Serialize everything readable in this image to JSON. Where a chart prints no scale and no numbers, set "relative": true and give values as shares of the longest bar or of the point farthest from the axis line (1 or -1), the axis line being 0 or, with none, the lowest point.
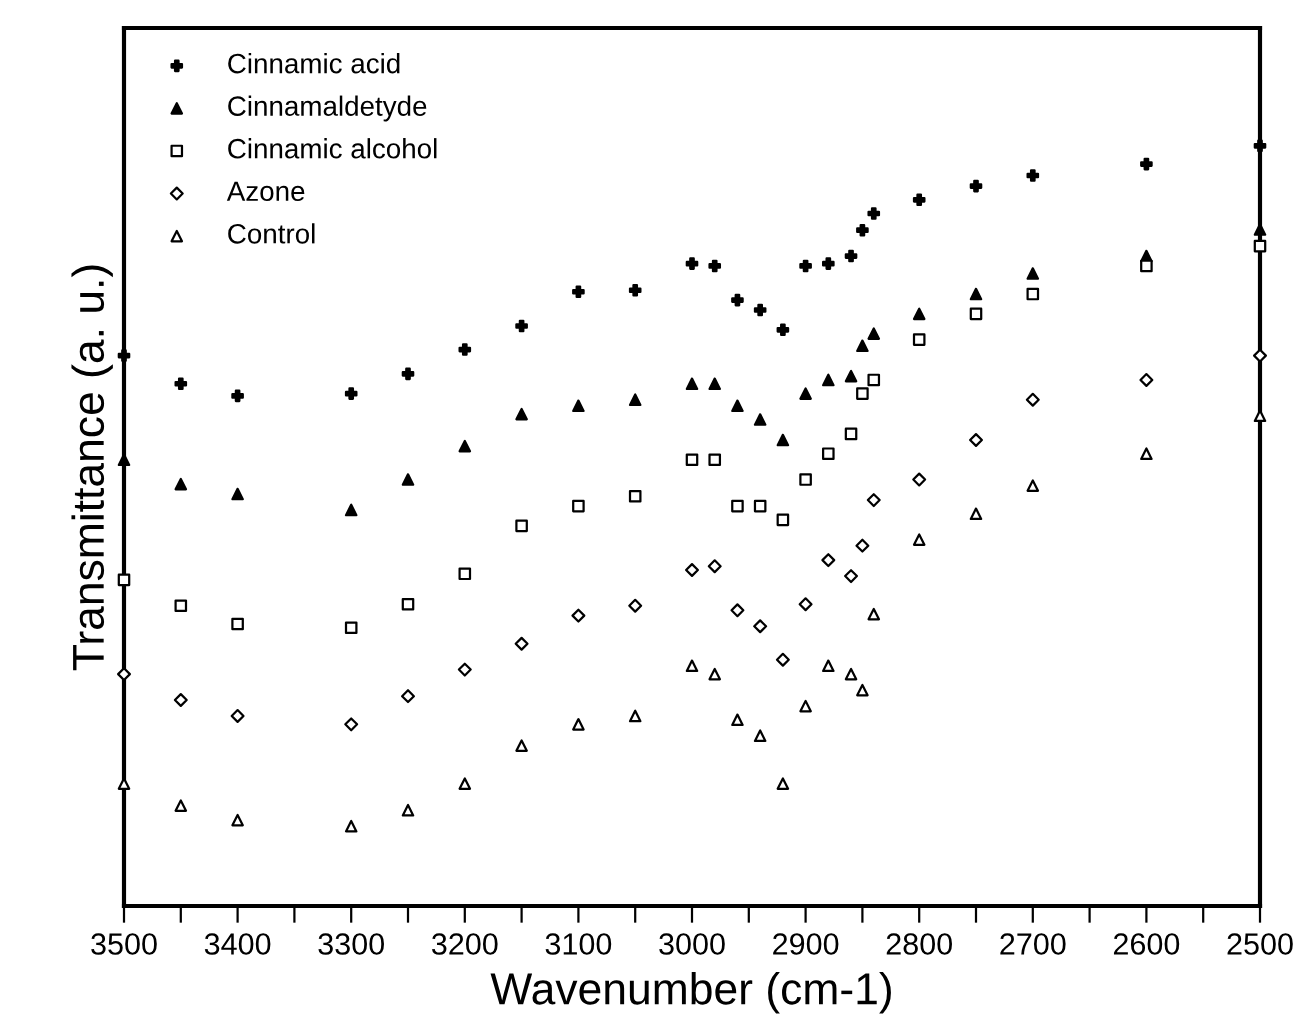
{
  "chart_data": {
    "type": "scatter",
    "relative": true,
    "xlabel": "Wavenumber (cm-1)",
    "ylabel": "Transmittance (a. u.)",
    "x": [
      3500,
      3450,
      3400,
      3300,
      3250,
      3200,
      3150,
      3100,
      3050,
      3000,
      2980,
      2960,
      2940,
      2920,
      2900,
      2880,
      2860,
      2850,
      2840,
      2800,
      2750,
      2700,
      2600,
      2500
    ],
    "xlim": [
      3500,
      2500
    ],
    "xticks": [
      3500,
      {
        "value": 3450,
        "label": null
      },
      3400,
      {
        "value": 3350,
        "label": null
      },
      3300,
      {
        "value": 3250,
        "label": null
      },
      3200,
      {
        "value": 3150,
        "label": null
      },
      3100,
      {
        "value": 3050,
        "label": null
      },
      3000,
      {
        "value": 2950,
        "label": null
      },
      2900,
      {
        "value": 2850,
        "label": null
      },
      2800,
      {
        "value": 2750,
        "label": null
      },
      2700,
      {
        "value": 2650,
        "label": null
      },
      2600,
      {
        "value": 2550,
        "label": null
      },
      2500
    ],
    "tick_labels": "x",
    "grid": false,
    "legend": "top left",
    "series": [
      {
        "name": "Cinnamic acid",
        "color": "#000000",
        "marker": "plus",
        "values": [
          0.724,
          0.687,
          0.671,
          0.674,
          0.7,
          0.732,
          0.763,
          0.808,
          0.81,
          0.845,
          0.842,
          0.797,
          0.784,
          0.758,
          0.842,
          0.845,
          0.855,
          0.889,
          0.911,
          0.929,
          0.947,
          0.961,
          0.976,
          1
        ]
      },
      {
        "name": "Cinnamaldetyde",
        "color": "#000000",
        "marker": "triangle_filled",
        "values": [
          0.587,
          0.555,
          0.542,
          0.521,
          0.561,
          0.605,
          0.647,
          0.658,
          0.666,
          0.687,
          0.687,
          0.658,
          0.64,
          0.613,
          0.674,
          0.692,
          0.697,
          0.737,
          0.753,
          0.779,
          0.805,
          0.832,
          0.855,
          0.89
        ]
      },
      {
        "name": "Cinnamic alcohol",
        "color": "#000000",
        "marker": "square",
        "values": [
          0.429,
          0.395,
          0.371,
          0.366,
          0.397,
          0.437,
          0.5,
          0.526,
          0.539,
          0.587,
          0.587,
          0.526,
          0.526,
          0.508,
          0.561,
          0.595,
          0.621,
          0.674,
          0.692,
          0.745,
          0.779,
          0.805,
          0.842,
          0.868
        ]
      },
      {
        "name": "Azone",
        "color": "#000000",
        "marker": "diamond",
        "values": [
          0.305,
          0.271,
          0.25,
          0.239,
          0.276,
          0.311,
          0.345,
          0.382,
          0.395,
          0.442,
          0.447,
          0.389,
          0.368,
          0.324,
          0.397,
          0.455,
          0.434,
          0.474,
          0.534,
          0.561,
          0.613,
          0.666,
          0.692,
          0.724
        ]
      },
      {
        "name": "Control",
        "color": "#000000",
        "marker": "triangle",
        "values": [
          0.161,
          0.132,
          0.113,
          0.105,
          0.126,
          0.161,
          0.211,
          0.239,
          0.25,
          0.316,
          0.305,
          0.245,
          0.224,
          0.161,
          0.263,
          0.316,
          0.305,
          0.284,
          0.384,
          0.482,
          0.516,
          0.553,
          0.595,
          0.645
        ]
      }
    ]
  }
}
